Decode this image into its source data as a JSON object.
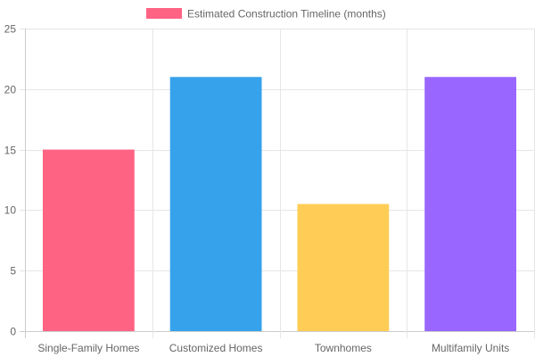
{
  "chart_data": {
    "type": "bar",
    "categories": [
      "Single-Family Homes",
      "Customized Homes",
      "Townhomes",
      "Multifamily Units"
    ],
    "series": [
      {
        "name": "Estimated Construction Timeline (months)",
        "values": [
          15,
          21,
          10.5,
          21
        ]
      }
    ],
    "bar_colors": [
      "#ff6384",
      "#36a2eb",
      "#ffcd56",
      "#9966ff"
    ],
    "legend_color": "#ff6384",
    "ylim": [
      0,
      25
    ],
    "yticks": [
      "0",
      "5",
      "10",
      "15",
      "20",
      "25"
    ],
    "grid": true,
    "legend_position": "top"
  }
}
